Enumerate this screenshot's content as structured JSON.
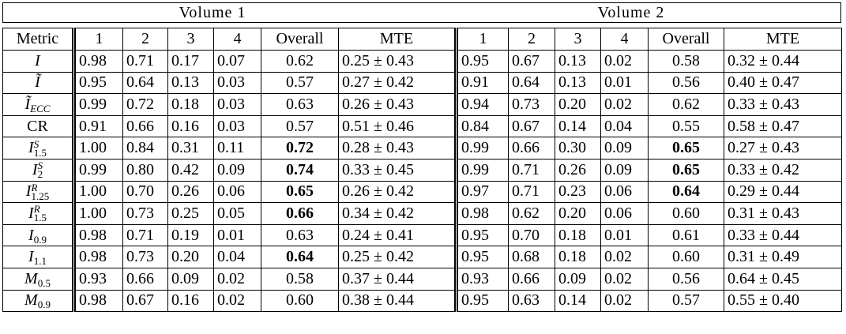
{
  "groups": [
    "Volume 1",
    "Volume 2"
  ],
  "columns": [
    "Metric",
    "1",
    "2",
    "3",
    "4",
    "Overall",
    "MTE",
    "1",
    "2",
    "3",
    "4",
    "Overall",
    "MTE"
  ],
  "rows": [
    {
      "metric": {
        "base": "I"
      },
      "cells": [
        "0.98",
        "0.71",
        "0.17",
        "0.07",
        "0.62",
        "0.25 ± 0.43",
        "0.95",
        "0.67",
        "0.13",
        "0.02",
        "0.58",
        "0.32 ± 0.44"
      ]
    },
    {
      "metric": {
        "base": "Ĩ"
      },
      "cells": [
        "0.95",
        "0.64",
        "0.13",
        "0.03",
        "0.57",
        "0.27 ± 0.42",
        "0.91",
        "0.64",
        "0.13",
        "0.01",
        "0.56",
        "0.40 ± 0.47"
      ]
    },
    {
      "metric": {
        "base": "Ĩ",
        "sub": "ECC"
      },
      "cells": [
        "0.99",
        "0.72",
        "0.18",
        "0.03",
        "0.63",
        "0.26 ± 0.43",
        "0.94",
        "0.73",
        "0.20",
        "0.02",
        "0.62",
        "0.33 ± 0.43"
      ]
    },
    {
      "metric": {
        "base": "CR"
      },
      "cells": [
        "0.91",
        "0.66",
        "0.16",
        "0.03",
        "0.57",
        "0.51 ± 0.46",
        "0.84",
        "0.67",
        "0.14",
        "0.04",
        "0.55",
        "0.58 ± 0.47"
      ]
    },
    {
      "metric": {
        "base": "I",
        "sub": "1.5",
        "sup": "S"
      },
      "cells": [
        "1.00",
        "0.84",
        "0.31",
        "0.11",
        {
          "text": "0.72",
          "bold": true
        },
        "0.28 ± 0.43",
        "0.99",
        "0.66",
        "0.30",
        "0.09",
        {
          "text": "0.65",
          "bold": true
        },
        "0.27 ± 0.43"
      ]
    },
    {
      "metric": {
        "base": "I",
        "sub": "2",
        "sup": "S"
      },
      "cells": [
        "0.99",
        "0.80",
        "0.42",
        "0.09",
        {
          "text": "0.74",
          "bold": true
        },
        "0.33 ± 0.45",
        "0.99",
        "0.71",
        "0.26",
        "0.09",
        {
          "text": "0.65",
          "bold": true
        },
        "0.33 ± 0.42"
      ]
    },
    {
      "metric": {
        "base": "I",
        "sub": "1.25",
        "sup": "R"
      },
      "cells": [
        "1.00",
        "0.70",
        "0.26",
        "0.06",
        {
          "text": "0.65",
          "bold": true
        },
        "0.26 ± 0.42",
        "0.97",
        "0.71",
        "0.23",
        "0.06",
        {
          "text": "0.64",
          "bold": true
        },
        "0.29 ± 0.44"
      ]
    },
    {
      "metric": {
        "base": "I",
        "sub": "1.5",
        "sup": "R"
      },
      "cells": [
        "1.00",
        "0.73",
        "0.25",
        "0.05",
        {
          "text": "0.66",
          "bold": true
        },
        "0.34 ± 0.42",
        "0.98",
        "0.62",
        "0.20",
        "0.06",
        "0.60",
        "0.31 ± 0.43"
      ]
    },
    {
      "metric": {
        "base": "I",
        "sub": "0.9"
      },
      "cells": [
        "0.98",
        "0.71",
        "0.19",
        "0.01",
        "0.63",
        "0.24 ± 0.41",
        "0.95",
        "0.70",
        "0.18",
        "0.01",
        "0.61",
        "0.33 ± 0.44"
      ]
    },
    {
      "metric": {
        "base": "I",
        "sub": "1.1"
      },
      "cells": [
        "0.98",
        "0.73",
        "0.20",
        "0.04",
        {
          "text": "0.64",
          "bold": true
        },
        "0.25 ± 0.42",
        "0.95",
        "0.68",
        "0.18",
        "0.02",
        "0.60",
        "0.31 ± 0.49"
      ]
    },
    {
      "metric": {
        "base": "M",
        "sub": "0.5"
      },
      "cells": [
        "0.93",
        "0.66",
        "0.09",
        "0.02",
        "0.58",
        "0.37 ± 0.44",
        "0.93",
        "0.66",
        "0.09",
        "0.02",
        "0.56",
        "0.64 ± 0.45"
      ]
    },
    {
      "metric": {
        "base": "M",
        "sub": "0.9"
      },
      "cells": [
        "0.98",
        "0.67",
        "0.16",
        "0.02",
        "0.60",
        "0.38 ± 0.44",
        "0.95",
        "0.63",
        "0.14",
        "0.02",
        "0.57",
        "0.55 ± 0.40"
      ]
    }
  ]
}
